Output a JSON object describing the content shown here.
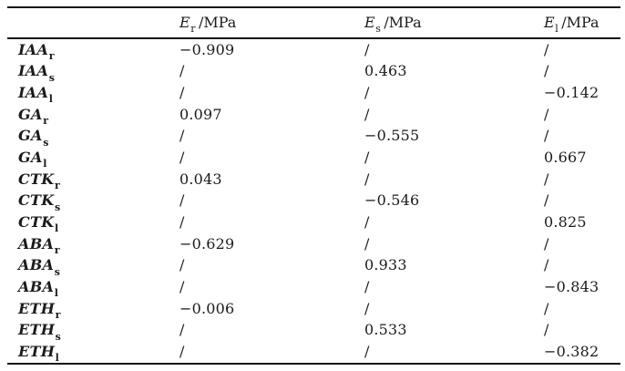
{
  "colors": {
    "background": "#ffffff",
    "text": "#1b1b1b",
    "rule": "#151515"
  },
  "header": {
    "cols": [
      {
        "symbol": "E",
        "sub": "r",
        "unit": "/MPa"
      },
      {
        "symbol": "E",
        "sub": "s",
        "unit": "/MPa"
      },
      {
        "symbol": "E",
        "sub": "l",
        "unit": "/MPa"
      }
    ]
  },
  "rows": [
    {
      "label": {
        "name": "IAA",
        "sub": "r"
      },
      "values": [
        "−0.909",
        "/",
        "/"
      ]
    },
    {
      "label": {
        "name": "IAA",
        "sub": "s"
      },
      "values": [
        "/",
        "0.463",
        "/"
      ]
    },
    {
      "label": {
        "name": "IAA",
        "sub": "l"
      },
      "values": [
        "/",
        "/",
        "−0.142"
      ]
    },
    {
      "label": {
        "name": "GA",
        "sub": "r"
      },
      "values": [
        "0.097",
        "/",
        "/"
      ]
    },
    {
      "label": {
        "name": "GA",
        "sub": "s"
      },
      "values": [
        "/",
        "−0.555",
        "/"
      ]
    },
    {
      "label": {
        "name": "GA",
        "sub": "l"
      },
      "values": [
        "/",
        "/",
        "0.667"
      ]
    },
    {
      "label": {
        "name": "CTK",
        "sub": "r"
      },
      "values": [
        "0.043",
        "/",
        "/"
      ]
    },
    {
      "label": {
        "name": "CTK",
        "sub": "s"
      },
      "values": [
        "/",
        "−0.546",
        "/"
      ]
    },
    {
      "label": {
        "name": "CTK",
        "sub": "l"
      },
      "values": [
        "/",
        "/",
        "0.825"
      ]
    },
    {
      "label": {
        "name": "ABA",
        "sub": "r"
      },
      "values": [
        "−0.629",
        "/",
        "/"
      ]
    },
    {
      "label": {
        "name": "ABA",
        "sub": "s"
      },
      "values": [
        "/",
        "0.933",
        "/"
      ]
    },
    {
      "label": {
        "name": "ABA",
        "sub": "l"
      },
      "values": [
        "/",
        "/",
        "−0.843"
      ]
    },
    {
      "label": {
        "name": "ETH",
        "sub": "r"
      },
      "values": [
        "−0.006",
        "/",
        "/"
      ]
    },
    {
      "label": {
        "name": "ETH",
        "sub": "s"
      },
      "values": [
        "/",
        "0.533",
        "/"
      ]
    },
    {
      "label": {
        "name": "ETH",
        "sub": "l"
      },
      "values": [
        "/",
        "/",
        "−0.382"
      ]
    }
  ],
  "chart_data": {
    "type": "table",
    "columns": [
      "",
      "E_r /MPa",
      "E_s /MPa",
      "E_l /MPa"
    ],
    "rows": [
      [
        "IAA_r",
        "−0.909",
        "/",
        "/"
      ],
      [
        "IAA_s",
        "/",
        "0.463",
        "/"
      ],
      [
        "IAA_l",
        "/",
        "/",
        "−0.142"
      ],
      [
        "GA_r",
        "0.097",
        "/",
        "/"
      ],
      [
        "GA_s",
        "/",
        "−0.555",
        "/"
      ],
      [
        "GA_l",
        "/",
        "/",
        "0.667"
      ],
      [
        "CTK_r",
        "0.043",
        "/",
        "/"
      ],
      [
        "CTK_s",
        "/",
        "−0.546",
        "/"
      ],
      [
        "CTK_l",
        "/",
        "/",
        "0.825"
      ],
      [
        "ABA_r",
        "−0.629",
        "/",
        "/"
      ],
      [
        "ABA_s",
        "/",
        "0.933",
        "/"
      ],
      [
        "ABA_l",
        "/",
        "/",
        "−0.843"
      ],
      [
        "ETH_r",
        "−0.006",
        "/",
        "/"
      ],
      [
        "ETH_s",
        "/",
        "0.533",
        "/"
      ],
      [
        "ETH_l",
        "/",
        "/",
        "−0.382"
      ]
    ]
  }
}
